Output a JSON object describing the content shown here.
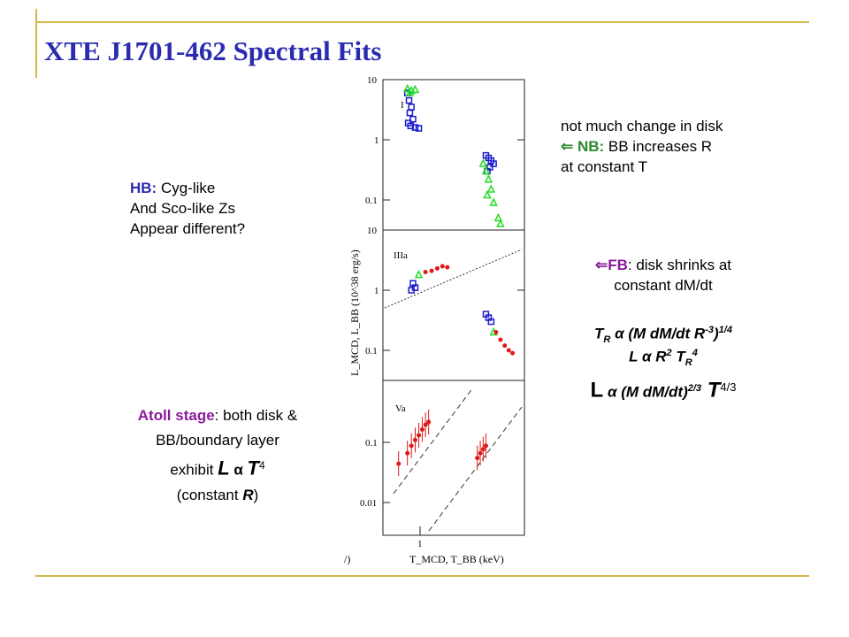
{
  "title": "XTE J1701-462 Spectral Fits",
  "colors": {
    "rule": "#d4b84a",
    "title": "#2b2bb0",
    "hb": "#2b2bb0",
    "nb": "#2a8a2a",
    "fb": "#8a1a9a",
    "atoll": "#8a1a9a",
    "blue_pts": "#1a1acc",
    "green_pts": "#22dd22",
    "red_pts": "#e01818"
  },
  "notes": {
    "hb_label": "HB:",
    "hb_line1": " Cyg-like",
    "hb_line2": "And Sco-like Zs",
    "hb_line3": "Appear different?",
    "disk_line1": "not much change in disk",
    "nb_arrow": "⇐ ",
    "nb_label": "NB:",
    "nb_line1": " BB increases R",
    "nb_line2": "at constant T",
    "fb_arrow": "⇐",
    "fb_label": "FB",
    "fb_line1": ": disk shrinks at",
    "fb_line2": "constant dM/dt",
    "eq1_a": "T",
    "eq1_sub": "R",
    "eq1_b": " α (M dM/dt R",
    "eq1_sup1": "-3",
    "eq1_c": ")",
    "eq1_sup2": "1/4",
    "eq2_a": "L α R",
    "eq2_sup": "2",
    "eq2_b": " T",
    "eq2_sub": "R",
    "eq2_sup2": "4",
    "eq3_a": "L",
    "eq3_b": " α (M dM/dt)",
    "eq3_sup": "2/3",
    "eq3_c": " T",
    "eq3_sup2": "4/3",
    "atoll_label": "Atoll stage",
    "atoll_line1": ":  both disk &",
    "atoll_line2": "BB/boundary layer",
    "atoll_line3a": "exhibit ",
    "atoll_L": "L",
    "atoll_alpha": " α ",
    "atoll_T": "T",
    "atoll_sup": "4",
    "atoll_line4a": "(constant ",
    "atoll_R": "R",
    "atoll_line4b": ")"
  },
  "figure": {
    "panels": [
      {
        "label": "I",
        "yticks": [
          "10",
          "1",
          "0.1"
        ]
      },
      {
        "label": "IIIa",
        "yticks": [
          "10",
          "1",
          "0.1"
        ]
      },
      {
        "label": "Va",
        "yticks": [
          "0.1",
          "0.01"
        ]
      }
    ],
    "ylabel": "L_MCD, L_BB (10^38 erg/s)",
    "xtick": "1",
    "xlabel": "T_MCD, T_BB (keV)",
    "cut_text": "/)"
  },
  "chart_data": [
    {
      "type": "scatter",
      "title": "I",
      "ylabel": "L_MCD, L_BB (10^38 erg/s)",
      "xlabel": "T_MCD, T_BB (keV)",
      "yscale": "log",
      "xscale": "log",
      "ylim": [
        0.03,
        10
      ],
      "series": [
        {
          "color": "#1a1acc",
          "marker": "square",
          "x": [
            0.85,
            0.87,
            0.9,
            0.88,
            0.92,
            0.86,
            0.89,
            0.95,
            1.0,
            2.6,
            2.7,
            2.8,
            2.9,
            2.75,
            2.65
          ],
          "y": [
            6.0,
            4.5,
            3.5,
            2.8,
            2.2,
            1.9,
            1.7,
            1.6,
            1.55,
            0.55,
            0.5,
            0.45,
            0.4,
            0.35,
            0.3
          ]
        },
        {
          "color": "#22dd22",
          "marker": "triangle",
          "x": [
            0.85,
            0.9,
            0.95,
            0.88,
            2.5,
            2.6,
            2.7,
            2.8,
            2.65,
            2.9,
            3.1,
            3.2
          ],
          "y": [
            7.0,
            6.5,
            6.8,
            6.0,
            0.4,
            0.3,
            0.22,
            0.15,
            0.12,
            0.09,
            0.05,
            0.04
          ]
        }
      ]
    },
    {
      "type": "scatter",
      "title": "IIIa",
      "yscale": "log",
      "xscale": "log",
      "ylim": [
        0.05,
        10
      ],
      "series": [
        {
          "color": "#1a1acc",
          "marker": "square",
          "x": [
            0.9,
            0.92,
            0.95,
            2.6,
            2.7,
            2.8
          ],
          "y": [
            1.0,
            1.3,
            1.1,
            0.4,
            0.35,
            0.3
          ]
        },
        {
          "color": "#22dd22",
          "marker": "triangle",
          "x": [
            1.0,
            2.9
          ],
          "y": [
            1.8,
            0.2
          ]
        },
        {
          "color": "#e01818",
          "marker": "circle",
          "x": [
            1.1,
            1.2,
            1.3,
            1.4,
            1.5,
            3.0,
            3.2,
            3.4,
            3.6,
            3.8
          ],
          "y": [
            2.0,
            2.1,
            2.3,
            2.5,
            2.4,
            0.2,
            0.15,
            0.12,
            0.1,
            0.09
          ]
        }
      ]
    },
    {
      "type": "scatter",
      "title": "Va",
      "yscale": "log",
      "xscale": "log",
      "ylim": [
        0.003,
        1
      ],
      "xticks": [
        "1"
      ],
      "series": [
        {
          "color": "#e01818",
          "marker": "circle",
          "x": [
            0.75,
            0.85,
            0.9,
            0.95,
            1.0,
            1.05,
            1.1,
            1.15,
            2.3,
            2.4,
            2.5,
            2.6
          ],
          "y": [
            0.04,
            0.06,
            0.08,
            0.1,
            0.12,
            0.15,
            0.18,
            0.2,
            0.05,
            0.06,
            0.07,
            0.08
          ]
        }
      ]
    }
  ]
}
